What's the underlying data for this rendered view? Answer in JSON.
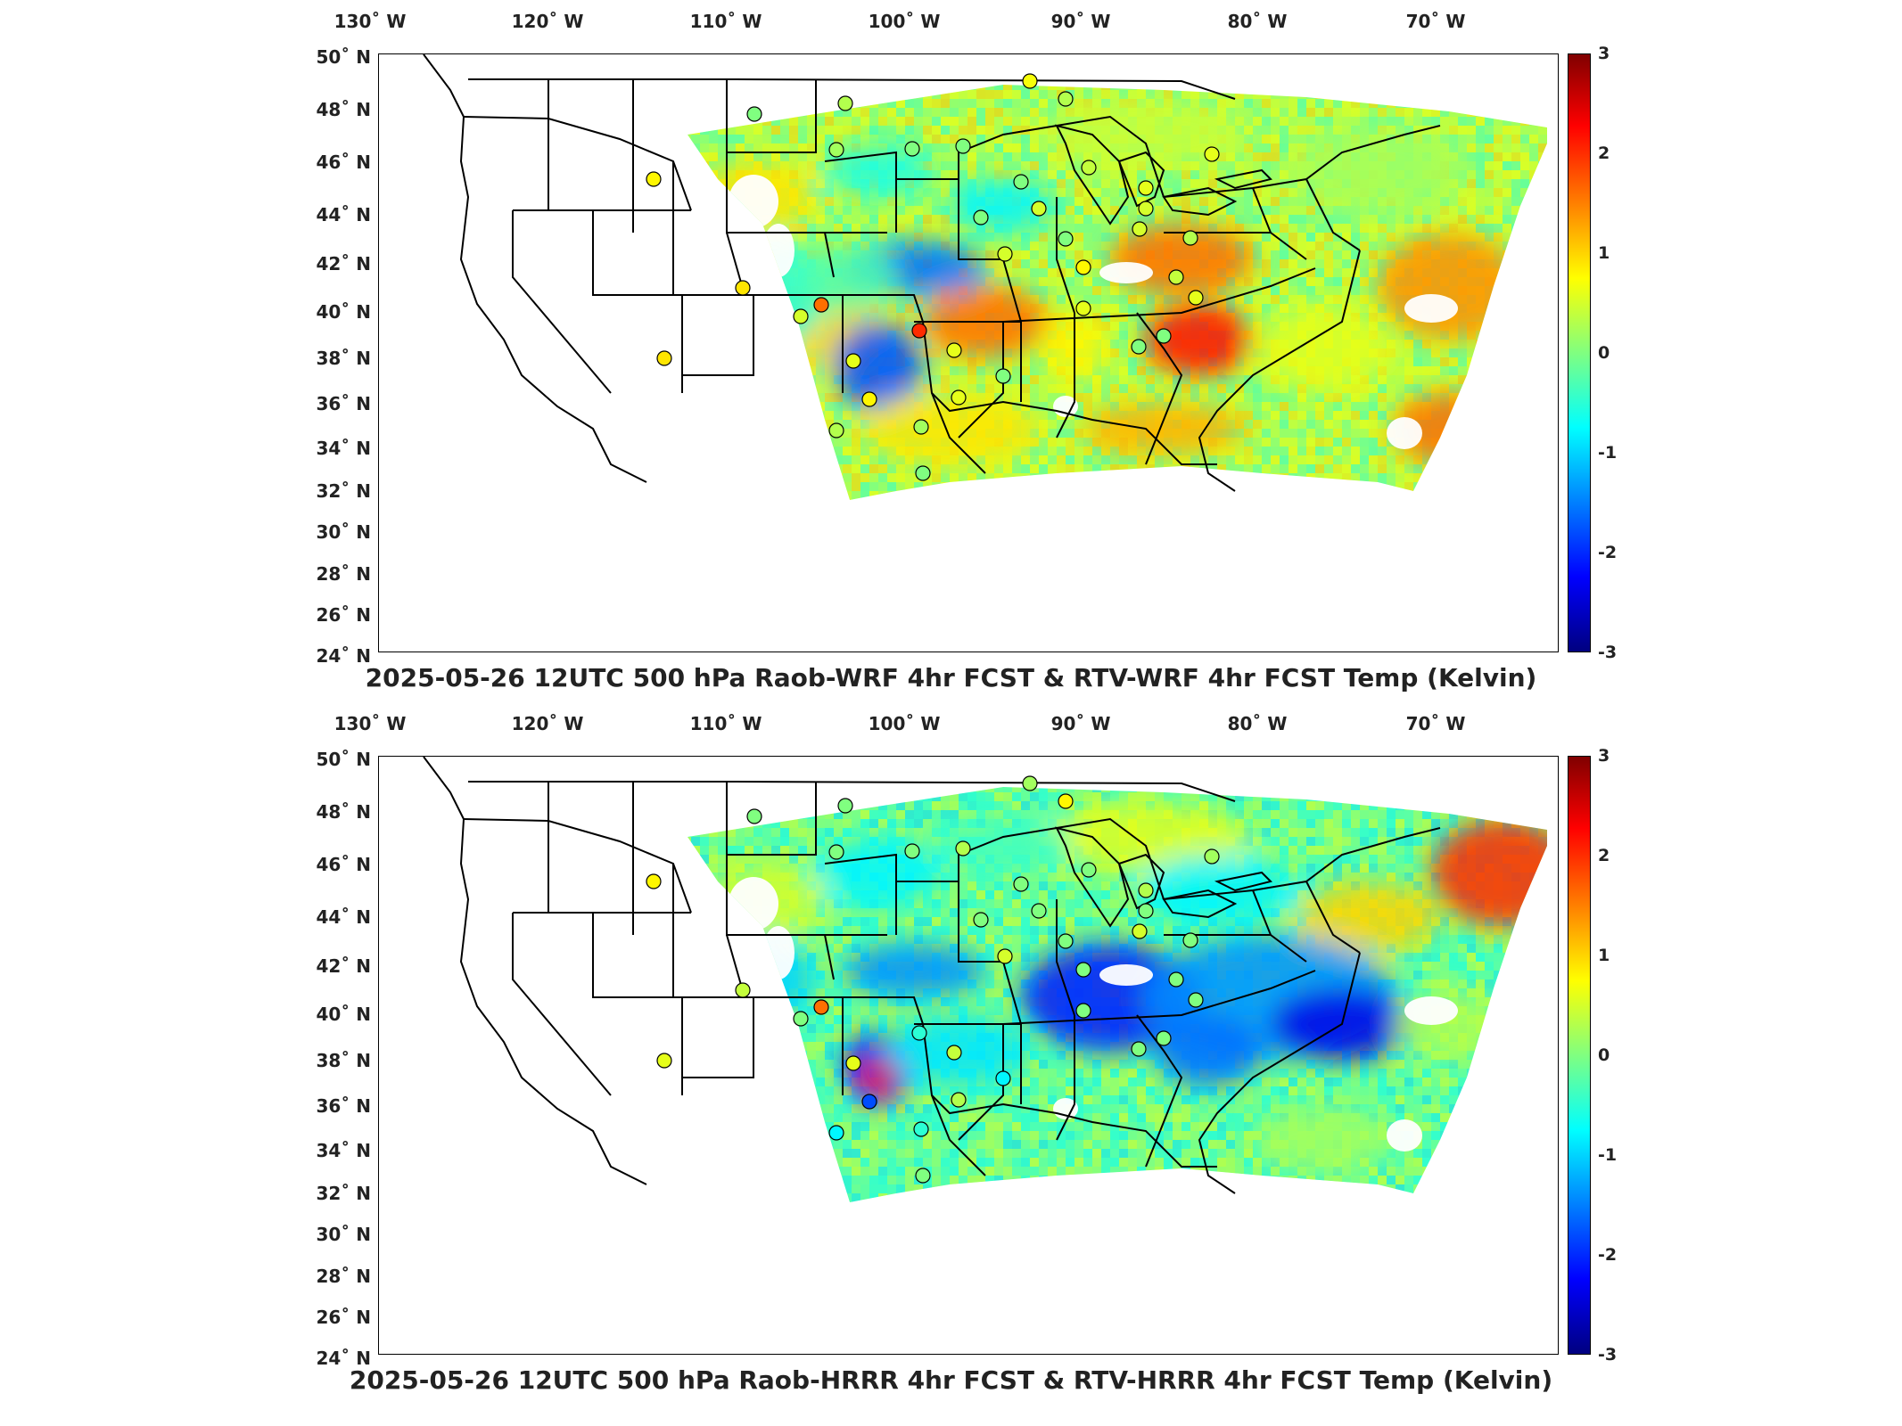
{
  "panels": [
    {
      "title": "2025-05-26 12UTC 500 hPa Raob-WRF 4hr FCST & RTV-WRF 4hr FCST Temp (Kelvin)",
      "variant": "wrf",
      "lon_labels": [
        "130˚ W",
        "120˚ W",
        "110˚ W",
        "100˚ W",
        "90˚ W",
        "80˚ W",
        "70˚ W"
      ],
      "lat_labels": [
        "50˚ N",
        "48˚ N",
        "46˚ N",
        "44˚ N",
        "42˚ N",
        "40˚ N",
        "38˚ N",
        "36˚ N",
        "34˚ N",
        "32˚ N",
        "30˚ N",
        "28˚ N",
        "26˚ N",
        "24˚ N"
      ],
      "colorbar_ticks": [
        "3",
        "2",
        "1",
        "0",
        "-1",
        "-2",
        "-3"
      ],
      "colorbar_range": [
        -3,
        3
      ],
      "station_values": [
        0.8,
        0.0,
        0.3,
        0.2,
        0.0,
        0.0,
        0.0,
        0.4,
        0.5,
        0.0,
        0.9,
        0.9,
        0.5,
        0.6,
        0.3,
        2.0,
        0.8,
        0.2,
        1.6,
        0.6,
        0.0,
        0.6,
        0.0,
        0.5,
        0.8,
        0.6,
        0.0,
        0.5,
        0.5,
        0.6,
        0.6,
        0.4,
        0.3,
        0.0,
        0.0,
        0.6,
        0.3,
        0.7
      ]
    },
    {
      "title": "2025-05-26 12UTC 500 hPa Raob-HRRR 4hr FCST & RTV-HRRR 4hr FCST Temp (Kelvin)",
      "variant": "hrrr",
      "lon_labels": [
        "130˚ W",
        "120˚ W",
        "110˚ W",
        "100˚ W",
        "90˚ W",
        "80˚ W",
        "70˚ W"
      ],
      "lat_labels": [
        "50˚ N",
        "48˚ N",
        "46˚ N",
        "44˚ N",
        "42˚ N",
        "40˚ N",
        "38˚ N",
        "36˚ N",
        "34˚ N",
        "32˚ N",
        "30˚ N",
        "28˚ N",
        "26˚ N",
        "24˚ N"
      ],
      "colorbar_ticks": [
        "3",
        "2",
        "1",
        "0",
        "-1",
        "-2",
        "-3"
      ],
      "colorbar_range": [
        -3,
        3
      ],
      "station_values": [
        0.8,
        0.0,
        0.0,
        0.0,
        0.0,
        0.3,
        0.0,
        0.0,
        0.5,
        0.0,
        0.4,
        0.6,
        0.0,
        0.6,
        -0.8,
        -0.5,
        -1.8,
        -0.5,
        1.6,
        0.4,
        0.0,
        0.3,
        -0.8,
        0.5,
        0.0,
        0.0,
        0.0,
        0.0,
        0.0,
        0.2,
        0.0,
        0.0,
        0.0,
        0.0,
        0.0,
        0.3,
        0.8,
        0.2
      ]
    }
  ]
}
